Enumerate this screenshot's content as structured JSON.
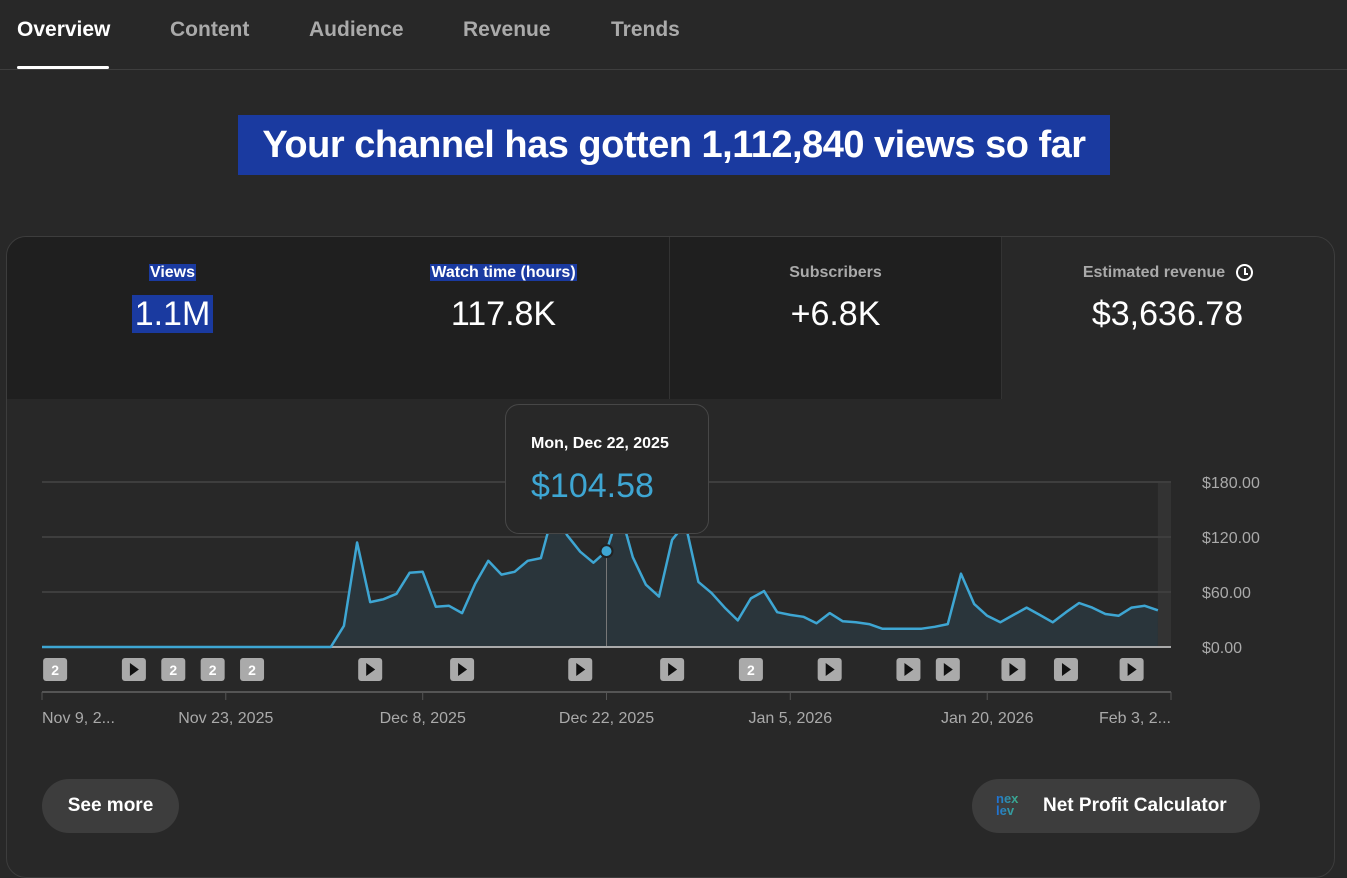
{
  "tabs": [
    "Overview",
    "Content",
    "Audience",
    "Revenue",
    "Trends"
  ],
  "active_tab": "Overview",
  "headline": "Your channel has gotten 1,112,840 views so far",
  "metrics": [
    {
      "label": "Views",
      "value": "1.1M"
    },
    {
      "label": "Watch time (hours)",
      "value": "117.8K"
    },
    {
      "label": "Subscribers",
      "value": "+6.8K"
    },
    {
      "label": "Estimated revenue",
      "value": "$3,636.78",
      "icon": "clock-icon"
    }
  ],
  "tooltip": {
    "date": "Mon, Dec 22, 2025",
    "value": "$104.58"
  },
  "buttons": {
    "see_more": "See more",
    "net_profit": "Net Profit Calculator",
    "net_profit_logo": "nexlev"
  },
  "colors": {
    "accent": "#3ea6d3",
    "selection": "#1a3aa0",
    "background": "#282828"
  },
  "chart_data": {
    "type": "area",
    "series_name": "Estimated revenue",
    "start_date": "2025-11-09",
    "ylim": [
      0,
      180
    ],
    "yticks": [
      "$0.00",
      "$60.00",
      "$120.00",
      "$180.00"
    ],
    "ytick_values": [
      0,
      60,
      120,
      180
    ],
    "xticks": [
      {
        "day": 0,
        "label": "Nov 9, 2..."
      },
      {
        "day": 14,
        "label": "Nov 23, 2025"
      },
      {
        "day": 29,
        "label": "Dec 8, 2025"
      },
      {
        "day": 43,
        "label": "Dec 22, 2025"
      },
      {
        "day": 57,
        "label": "Jan 5, 2026"
      },
      {
        "day": 72,
        "label": "Jan 20, 2026"
      },
      {
        "day": 86,
        "label": "Feb 3, 2..."
      }
    ],
    "x_total_days": 86,
    "highlight_day": 43,
    "values": [
      0,
      0,
      0,
      0,
      0,
      0,
      0,
      0,
      0,
      0,
      0,
      0,
      0,
      0,
      0,
      0,
      0,
      0,
      0,
      0,
      0,
      0,
      0,
      23,
      114,
      49,
      52,
      58,
      81,
      82,
      44,
      45,
      37,
      69,
      94,
      79,
      82,
      94,
      97,
      150,
      122,
      104,
      92,
      104.58,
      150,
      98,
      68,
      55,
      117,
      135,
      71,
      59,
      43,
      29,
      53,
      61,
      38,
      35,
      33,
      26,
      37,
      28,
      27,
      25,
      20,
      20,
      20,
      20,
      22,
      25,
      80,
      47,
      34,
      27,
      35,
      43,
      35,
      27,
      38,
      48,
      43,
      36,
      34,
      43,
      45,
      40
    ],
    "markers": [
      {
        "day": 1,
        "type": "count",
        "label": "2"
      },
      {
        "day": 7,
        "type": "video"
      },
      {
        "day": 10,
        "type": "count",
        "label": "2"
      },
      {
        "day": 13,
        "type": "count",
        "label": "2"
      },
      {
        "day": 16,
        "type": "count",
        "label": "2"
      },
      {
        "day": 25,
        "type": "video"
      },
      {
        "day": 32,
        "type": "video"
      },
      {
        "day": 41,
        "type": "video"
      },
      {
        "day": 48,
        "type": "video"
      },
      {
        "day": 54,
        "type": "count",
        "label": "2"
      },
      {
        "day": 60,
        "type": "video"
      },
      {
        "day": 66,
        "type": "video"
      },
      {
        "day": 69,
        "type": "video"
      },
      {
        "day": 74,
        "type": "video"
      },
      {
        "day": 78,
        "type": "video"
      },
      {
        "day": 83,
        "type": "video"
      }
    ]
  }
}
